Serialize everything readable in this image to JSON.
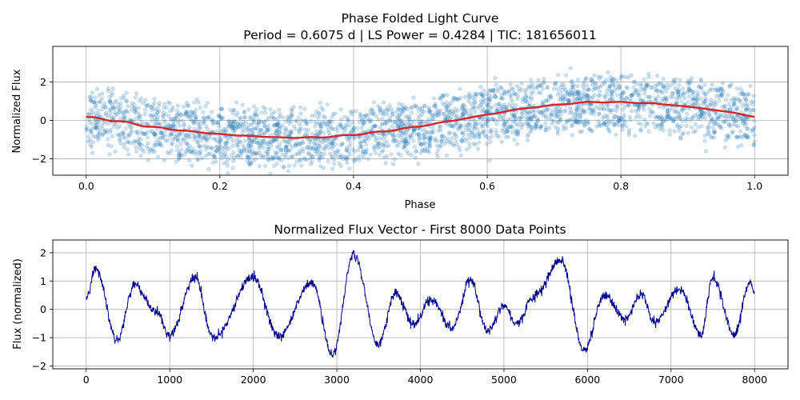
{
  "chart_data": [
    {
      "type": "scatter",
      "title_line1": "Phase Folded Light Curve",
      "title_line2": "Period = 0.6075 d | LS Power = 0.4284 | TIC: 181656011",
      "xlabel": "Phase",
      "ylabel": "Normalized Flux",
      "xlim": [
        -0.05,
        1.05
      ],
      "ylim": [
        -2.85,
        3.85
      ],
      "xticks": [
        0.0,
        0.2,
        0.4,
        0.6,
        0.8,
        1.0
      ],
      "xtick_labels": [
        "0.0",
        "0.2",
        "0.4",
        "0.6",
        "0.8",
        "1.0"
      ],
      "yticks": [
        -2,
        0,
        2
      ],
      "ytick_labels": [
        "−2",
        "0",
        "2"
      ],
      "grid": true,
      "scatter_color": "#1f77b4",
      "scatter_alpha": 0.22,
      "scatter_count": 3000,
      "binned_series": {
        "color": "#d62728",
        "x": [
          0.0,
          0.05,
          0.1,
          0.15,
          0.2,
          0.25,
          0.3,
          0.35,
          0.4,
          0.45,
          0.5,
          0.55,
          0.6,
          0.65,
          0.7,
          0.75,
          0.8,
          0.85,
          0.9,
          0.95,
          1.0
        ],
        "y": [
          0.18,
          -0.05,
          -0.35,
          -0.55,
          -0.72,
          -0.82,
          -0.9,
          -0.88,
          -0.75,
          -0.55,
          -0.3,
          0.0,
          0.3,
          0.6,
          0.8,
          0.95,
          0.95,
          0.88,
          0.72,
          0.5,
          0.2
        ]
      }
    },
    {
      "type": "line",
      "title": "Normalized Flux Vector - First 8000 Data Points",
      "xlabel": "",
      "ylabel": "Flux (normalized)",
      "xlim": [
        -400,
        8400
      ],
      "ylim": [
        -2.1,
        2.45
      ],
      "xticks": [
        0,
        1000,
        2000,
        3000,
        4000,
        5000,
        6000,
        7000,
        8000
      ],
      "xtick_labels": [
        "0",
        "1000",
        "2000",
        "3000",
        "4000",
        "5000",
        "6000",
        "7000",
        "8000"
      ],
      "yticks": [
        -2,
        -1,
        0,
        1,
        2
      ],
      "ytick_labels": [
        "−2",
        "−1",
        "0",
        "1",
        "2"
      ],
      "grid": true,
      "line_color": "#00008b",
      "series": {
        "x": [
          0,
          110,
          370,
          580,
          840,
          1000,
          1300,
          1520,
          2000,
          2300,
          2700,
          2950,
          3200,
          3500,
          3700,
          3920,
          4120,
          4380,
          4600,
          4800,
          5000,
          5150,
          5360,
          5680,
          5960,
          6200,
          6450,
          6650,
          6800,
          7100,
          7360,
          7500,
          7750,
          7950,
          8000
        ],
        "y": [
          0.35,
          1.45,
          -1.05,
          0.85,
          -0.1,
          -0.95,
          1.15,
          -1.05,
          1.15,
          -0.95,
          0.95,
          -1.6,
          1.95,
          -1.25,
          0.6,
          -0.55,
          0.35,
          -0.65,
          1.05,
          -0.75,
          0.15,
          -0.5,
          0.45,
          1.75,
          -1.45,
          0.5,
          -0.35,
          0.55,
          -0.5,
          0.75,
          -0.9,
          1.15,
          -0.9,
          0.95,
          0.5
        ]
      }
    }
  ]
}
